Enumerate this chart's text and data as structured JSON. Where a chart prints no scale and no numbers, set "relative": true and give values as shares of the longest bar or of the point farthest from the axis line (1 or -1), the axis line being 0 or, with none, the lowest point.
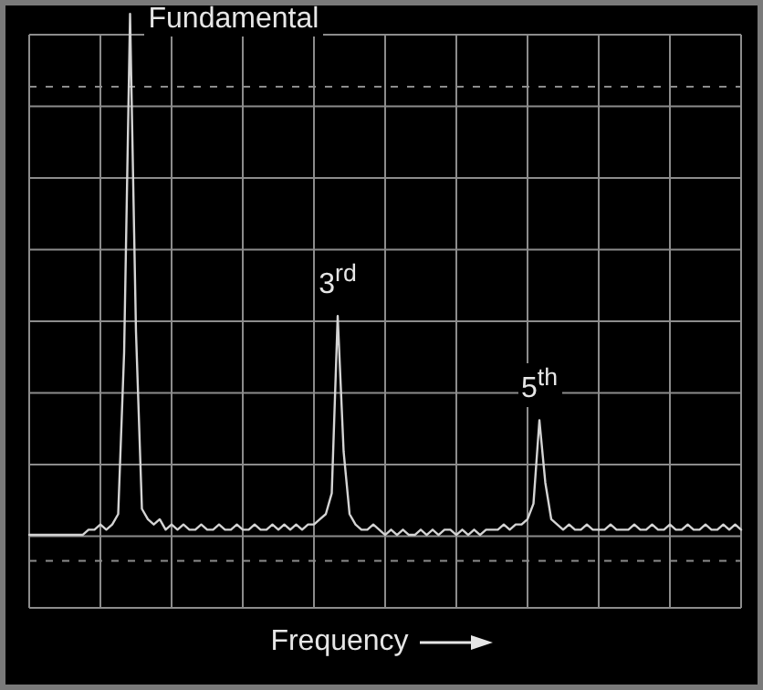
{
  "chart_data": {
    "type": "line",
    "relative": true,
    "xlabel": "Frequency",
    "grid": true,
    "marker": "none",
    "legend": false,
    "ref_lines": [
      {
        "axis": "y",
        "value": 0.86,
        "line_style": "dashed",
        "color": "#8c8c8c"
      },
      {
        "axis": "y",
        "value": -0.05,
        "line_style": "dashed",
        "color": "#8c8c8c"
      }
    ],
    "annotations": [
      {
        "text": "Fundamental"
      },
      {
        "text": "3$^{rd}$"
      },
      {
        "text": "5$^{th}$"
      }
    ],
    "categories": [
      null,
      null,
      null,
      null,
      null,
      null,
      null,
      null,
      null,
      null,
      null,
      null,
      null,
      null,
      null,
      null,
      null,
      null,
      null,
      null,
      null,
      null,
      null,
      null,
      null,
      null,
      null,
      null,
      null,
      null,
      null,
      null,
      null,
      null,
      null,
      null,
      null,
      null,
      null,
      null,
      null,
      null,
      null,
      null,
      null,
      null,
      null,
      null,
      null,
      null,
      null,
      null,
      null,
      null,
      null,
      null,
      null,
      null,
      null,
      null,
      null,
      null,
      null,
      null,
      null,
      null,
      null,
      null,
      null,
      null,
      null,
      null,
      null,
      null,
      null,
      null,
      null,
      null,
      null,
      null,
      null,
      null,
      null,
      null,
      null,
      null,
      null,
      null,
      null,
      null,
      null,
      null,
      null,
      null,
      null,
      null,
      null,
      null,
      null,
      null,
      null,
      null,
      null,
      null,
      null,
      null,
      null,
      null,
      null,
      null,
      null,
      null,
      null,
      null,
      null,
      null,
      null,
      null,
      null,
      null,
      null
    ],
    "series": [
      {
        "color": "#d4d4d4",
        "values": [
          0,
          0,
          0,
          0,
          0,
          0,
          0,
          0,
          0,
          0,
          0.01,
          0.01,
          0.02,
          0.01,
          0.02,
          0.04,
          0.35,
          1,
          0.39,
          0.05,
          0.03,
          0.02,
          0.03,
          0.01,
          0.02,
          0.01,
          0.02,
          0.01,
          0.01,
          0.02,
          0.01,
          0.01,
          0.02,
          0.01,
          0.01,
          0.02,
          0.01,
          0.01,
          0.02,
          0.01,
          0.01,
          0.02,
          0.01,
          0.02,
          0.01,
          0.02,
          0.01,
          0.02,
          0.02,
          0.03,
          0.04,
          0.08,
          0.42,
          0.16,
          0.04,
          0.02,
          0.01,
          0.01,
          0.02,
          0.01,
          0,
          0.01,
          0,
          0.01,
          0,
          0,
          0.01,
          0,
          0.01,
          0,
          0.01,
          0.01,
          0,
          0.01,
          0,
          0.01,
          0,
          0.01,
          0.01,
          0.01,
          0.02,
          0.01,
          0.02,
          0.02,
          0.03,
          0.06,
          0.22,
          0.1,
          0.03,
          0.02,
          0.01,
          0.02,
          0.01,
          0.01,
          0.02,
          0.01,
          0.01,
          0.01,
          0.02,
          0.01,
          0.01,
          0.01,
          0.02,
          0.01,
          0.01,
          0.02,
          0.01,
          0.01,
          0.02,
          0.01,
          0.01,
          0.02,
          0.01,
          0.01,
          0.02,
          0.01,
          0.01,
          0.02,
          0.01,
          0.02,
          0.01
        ]
      }
    ]
  }
}
